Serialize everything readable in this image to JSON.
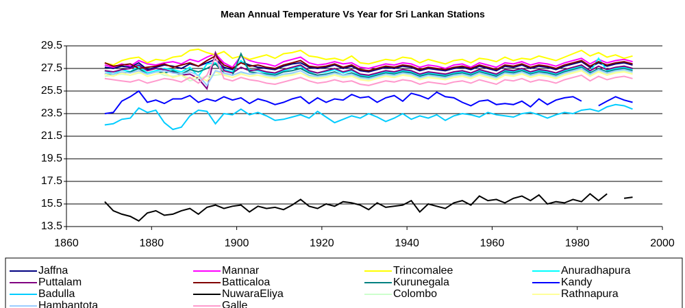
{
  "chart_data": {
    "type": "line",
    "title": "Mean Annual Temperature Vs Year for Sri Lankan Stations",
    "x": [
      1869,
      1871,
      1873,
      1875,
      1877,
      1879,
      1881,
      1883,
      1885,
      1887,
      1889,
      1891,
      1893,
      1895,
      1897,
      1899,
      1901,
      1903,
      1905,
      1907,
      1909,
      1911,
      1913,
      1915,
      1917,
      1919,
      1921,
      1923,
      1925,
      1927,
      1929,
      1931,
      1933,
      1935,
      1937,
      1939,
      1941,
      1943,
      1945,
      1947,
      1949,
      1951,
      1953,
      1955,
      1957,
      1959,
      1961,
      1963,
      1965,
      1967,
      1969,
      1971,
      1973,
      1975,
      1977,
      1979,
      1981,
      1983,
      1985,
      1987,
      1989,
      1991,
      1993
    ],
    "xlim": [
      1860,
      2000
    ],
    "xticks": [
      1860,
      1880,
      1900,
      1920,
      1940,
      1960,
      1980,
      2000
    ],
    "ylim": [
      13.5,
      29.5
    ],
    "yticks": [
      13.5,
      15.5,
      17.5,
      19.5,
      21.5,
      23.5,
      25.5,
      27.5,
      29.5
    ],
    "grid": true,
    "legend": "bottom",
    "series": [
      {
        "name": "Jaffna",
        "color": "#000080",
        "values": [
          27.6,
          27.5,
          27.7,
          27.6,
          28.0,
          27.4,
          27.6,
          27.8,
          27.7,
          27.5,
          27.9,
          27.7,
          28.0,
          28.3,
          27.6,
          27.4,
          28.1,
          27.8,
          27.6,
          27.5,
          27.4,
          27.7,
          27.9,
          28.0,
          27.6,
          27.5,
          27.6,
          27.8,
          27.5,
          27.7,
          27.3,
          27.2,
          27.4,
          27.6,
          27.5,
          27.7,
          27.6,
          27.3,
          27.5,
          27.4,
          27.3,
          27.5,
          27.6,
          27.4,
          27.7,
          27.5,
          27.3,
          27.7,
          27.6,
          27.8,
          27.5,
          27.7,
          27.6,
          27.4,
          27.7,
          27.9,
          28.1,
          27.6,
          28.0,
          27.7,
          27.9,
          28.0,
          27.8
        ]
      },
      {
        "name": "Mannar",
        "color": "#ff00ff",
        "values": [
          27.8,
          27.6,
          27.9,
          27.7,
          28.2,
          27.9,
          27.8,
          28.0,
          28.1,
          27.9,
          28.3,
          28.1,
          28.5,
          28.8,
          28.0,
          27.6,
          28.6,
          28.2,
          28.0,
          27.9,
          27.7,
          28.1,
          28.3,
          28.5,
          28.0,
          27.8,
          27.9,
          28.1,
          27.9,
          28.0,
          27.6,
          27.5,
          27.7,
          27.9,
          27.8,
          28.0,
          27.9,
          27.6,
          27.8,
          27.7,
          27.5,
          27.8,
          27.9,
          27.6,
          28.0,
          27.8,
          27.6,
          28.0,
          27.9,
          28.1,
          27.8,
          28.0,
          27.9,
          27.7,
          28.0,
          28.2,
          28.4,
          27.9,
          28.3,
          28.0,
          28.2,
          28.3,
          28.1
        ]
      },
      {
        "name": "Trincomalee",
        "color": "#ffff00",
        "values": [
          28.0,
          27.8,
          28.2,
          28.4,
          28.5,
          28.0,
          28.3,
          28.2,
          28.5,
          28.6,
          29.1,
          29.2,
          28.9,
          28.7,
          29.0,
          28.4,
          28.6,
          28.3,
          28.5,
          28.7,
          28.4,
          28.8,
          28.9,
          29.1,
          28.6,
          28.5,
          28.3,
          28.4,
          28.2,
          28.6,
          28.0,
          27.9,
          28.1,
          28.3,
          28.2,
          28.5,
          28.4,
          28.0,
          28.3,
          28.1,
          27.9,
          28.2,
          28.3,
          28.0,
          28.4,
          28.3,
          28.1,
          28.5,
          28.2,
          28.4,
          28.3,
          28.6,
          28.4,
          28.2,
          28.5,
          28.8,
          29.1,
          28.6,
          28.9,
          28.5,
          28.7,
          28.4,
          28.6
        ]
      },
      {
        "name": "Anuradhapura",
        "color": "#00ffff",
        "values": [
          27.3,
          27.0,
          27.4,
          27.2,
          27.7,
          27.1,
          27.3,
          27.5,
          27.4,
          27.2,
          27.6,
          26.8,
          27.9,
          28.0,
          27.4,
          27.2,
          28.2,
          27.4,
          27.3,
          27.1,
          27.0,
          27.3,
          27.5,
          27.7,
          27.2,
          27.1,
          27.2,
          27.4,
          27.1,
          27.3,
          26.9,
          26.8,
          27.0,
          27.2,
          27.1,
          27.3,
          27.2,
          26.9,
          27.1,
          27.0,
          26.9,
          27.1,
          27.2,
          27.0,
          27.3,
          27.1,
          26.9,
          27.3,
          27.2,
          27.4,
          27.1,
          27.3,
          27.2,
          27.0,
          27.3,
          27.5,
          27.7,
          27.2,
          28.4,
          27.3,
          27.5,
          27.6,
          27.4
        ]
      },
      {
        "name": "Puttalam",
        "color": "#800080",
        "values": [
          27.3,
          27.2,
          27.4,
          27.5,
          27.8,
          27.3,
          27.5,
          27.4,
          27.2,
          26.9,
          27.0,
          26.6,
          25.7,
          28.9,
          27.3,
          27.1,
          27.6,
          27.3,
          27.4,
          27.2,
          27.1,
          27.4,
          27.6,
          27.8,
          27.3,
          27.1,
          27.3,
          27.5,
          27.2,
          27.4,
          27.0,
          26.9,
          27.1,
          27.3,
          27.2,
          27.4,
          27.3,
          27.0,
          27.2,
          27.1,
          27.0,
          27.2,
          27.3,
          27.1,
          27.4,
          27.2,
          27.0,
          27.4,
          27.3,
          27.5,
          27.2,
          27.4,
          27.3,
          27.1,
          27.4,
          27.6,
          27.8,
          27.3,
          27.7,
          27.4,
          27.6,
          27.7,
          27.5
        ]
      },
      {
        "name": "Batticaloa",
        "color": "#800000",
        "values": [
          28.0,
          27.7,
          27.8,
          27.9,
          27.5,
          27.6,
          27.7,
          27.9,
          27.6,
          27.8,
          28.0,
          27.7,
          28.2,
          28.6,
          27.8,
          27.5,
          28.0,
          27.7,
          27.8,
          27.6,
          27.5,
          27.8,
          28.0,
          28.2,
          27.7,
          27.6,
          27.7,
          27.9,
          27.6,
          27.8,
          27.4,
          27.3,
          27.5,
          27.7,
          27.6,
          27.8,
          27.7,
          27.4,
          27.6,
          27.5,
          27.4,
          27.6,
          27.7,
          27.5,
          27.8,
          27.6,
          27.4,
          27.8,
          27.7,
          27.9,
          27.6,
          27.8,
          27.7,
          27.5,
          27.8,
          28.0,
          28.2,
          27.7,
          28.1,
          27.8,
          28.0,
          28.1,
          27.9
        ]
      },
      {
        "name": "Kurunegala",
        "color": "#008080",
        "values": [
          27.0,
          26.9,
          27.1,
          27.2,
          27.5,
          27.0,
          27.2,
          27.1,
          27.3,
          27.0,
          27.4,
          27.2,
          27.5,
          27.9,
          27.1,
          26.9,
          28.8,
          27.2,
          27.1,
          27.0,
          26.9,
          27.2,
          27.3,
          27.5,
          27.1,
          26.9,
          27.0,
          27.2,
          26.9,
          27.1,
          26.8,
          26.7,
          26.9,
          27.1,
          27.0,
          27.2,
          27.1,
          26.8,
          27.0,
          26.9,
          26.8,
          27.0,
          27.1,
          26.9,
          27.2,
          27.0,
          26.8,
          27.2,
          27.1,
          27.3,
          27.0,
          27.2,
          27.1,
          26.9,
          27.2,
          27.4,
          27.6,
          27.1,
          27.5,
          27.2,
          27.4,
          27.5,
          27.3
        ]
      },
      {
        "name": "Kandy",
        "color": "#0000ff",
        "values": [
          23.5,
          23.6,
          24.6,
          25.0,
          25.5,
          24.5,
          24.7,
          24.4,
          24.8,
          24.8,
          25.1,
          24.5,
          24.8,
          24.6,
          25.0,
          24.7,
          24.9,
          24.4,
          24.8,
          24.6,
          24.3,
          24.5,
          24.8,
          25.0,
          24.4,
          24.9,
          24.5,
          24.8,
          24.7,
          25.2,
          24.9,
          25.0,
          24.5,
          24.9,
          25.1,
          24.6,
          25.3,
          25.1,
          24.8,
          25.4,
          25.0,
          24.9,
          24.5,
          24.2,
          24.6,
          24.7,
          24.3,
          24.4,
          24.3,
          24.6,
          24.1,
          24.8,
          24.3,
          24.7,
          24.9,
          25.0,
          24.6,
          null,
          24.2,
          24.6,
          25.0,
          24.7,
          24.5
        ]
      },
      {
        "name": "Badulla",
        "color": "#00ccff",
        "values": [
          22.5,
          22.6,
          23.0,
          23.1,
          24.0,
          23.6,
          23.8,
          22.7,
          22.1,
          22.3,
          23.3,
          23.8,
          23.7,
          22.6,
          23.5,
          23.4,
          23.9,
          23.4,
          23.6,
          23.3,
          22.9,
          23.0,
          23.2,
          23.4,
          23.1,
          23.7,
          23.2,
          22.7,
          23.0,
          23.3,
          23.1,
          23.5,
          23.2,
          22.8,
          23.1,
          23.5,
          23.0,
          23.3,
          23.1,
          23.4,
          22.9,
          23.3,
          23.5,
          23.4,
          23.2,
          23.6,
          23.4,
          23.3,
          23.2,
          23.5,
          23.6,
          23.4,
          23.1,
          23.4,
          23.6,
          23.5,
          23.8,
          23.9,
          23.7,
          24.1,
          24.3,
          24.2,
          23.9
        ]
      },
      {
        "name": "NuwaraEliya",
        "color": "#000000",
        "values": [
          15.7,
          14.9,
          14.6,
          14.4,
          14.0,
          14.7,
          14.9,
          14.5,
          14.6,
          14.9,
          15.1,
          14.6,
          15.2,
          15.4,
          15.1,
          15.3,
          15.4,
          14.8,
          15.3,
          15.1,
          15.2,
          15.0,
          15.4,
          15.9,
          15.3,
          15.1,
          15.5,
          15.3,
          15.7,
          15.6,
          15.4,
          15.0,
          15.6,
          15.2,
          15.3,
          15.4,
          15.8,
          14.8,
          15.5,
          15.3,
          15.1,
          15.6,
          15.8,
          15.4,
          16.2,
          15.8,
          15.9,
          15.6,
          16.0,
          16.2,
          15.8,
          16.3,
          15.5,
          15.7,
          15.6,
          15.9,
          15.7,
          16.4,
          15.8,
          16.4,
          null,
          16.0,
          16.1
        ]
      },
      {
        "name": "Colombo",
        "color": "#ccffcc",
        "values": [
          26.8,
          26.9,
          27.0,
          26.9,
          27.1,
          27.0,
          27.2,
          26.9,
          26.8,
          26.9,
          26.4,
          26.6,
          26.8,
          26.9,
          27.0,
          26.9,
          27.1,
          27.0,
          26.9,
          26.8,
          26.7,
          26.9,
          27.0,
          27.1,
          26.8,
          26.7,
          26.8,
          27.0,
          26.8,
          26.9,
          26.6,
          26.5,
          26.7,
          26.9,
          26.8,
          27.0,
          26.9,
          26.6,
          26.8,
          26.7,
          26.6,
          26.8,
          26.9,
          26.7,
          27.0,
          26.8,
          26.6,
          27.0,
          26.9,
          27.1,
          26.8,
          27.0,
          26.9,
          26.7,
          27.0,
          27.2,
          27.4,
          26.9,
          27.3,
          27.0,
          27.2,
          27.3,
          27.1
        ]
      },
      {
        "name": "Rathnapura",
        "color": "#ffff99",
        "values": [
          27.0,
          26.8,
          27.1,
          26.9,
          27.2,
          26.8,
          27.0,
          27.1,
          26.7,
          26.9,
          26.6,
          26.8,
          26.4,
          27.2,
          26.9,
          26.7,
          27.0,
          26.8,
          26.9,
          26.7,
          26.6,
          26.8,
          26.9,
          27.1,
          26.7,
          26.6,
          26.7,
          26.9,
          26.7,
          26.8,
          26.5,
          26.4,
          26.6,
          26.8,
          26.7,
          26.9,
          26.8,
          26.5,
          26.7,
          26.6,
          26.5,
          26.7,
          26.8,
          26.6,
          26.9,
          26.7,
          26.5,
          26.9,
          26.8,
          27.0,
          26.7,
          26.9,
          26.8,
          26.6,
          26.9,
          27.1,
          27.3,
          26.8,
          27.2,
          26.9,
          27.1,
          27.2,
          27.0
        ]
      },
      {
        "name": "Hambantota",
        "color": "#99ccff",
        "values": [
          27.1,
          27.0,
          27.2,
          27.1,
          27.3,
          27.0,
          27.2,
          27.3,
          27.1,
          27.0,
          27.2,
          26.9,
          26.0,
          27.3,
          27.1,
          26.9,
          27.2,
          27.0,
          27.1,
          26.9,
          26.8,
          27.0,
          27.1,
          27.3,
          26.9,
          26.8,
          26.9,
          27.1,
          26.9,
          27.0,
          26.7,
          26.6,
          26.8,
          27.0,
          26.9,
          27.1,
          27.0,
          26.7,
          26.9,
          26.8,
          26.7,
          26.9,
          27.0,
          26.8,
          27.1,
          26.9,
          26.7,
          27.1,
          27.0,
          27.2,
          26.9,
          27.1,
          27.0,
          26.8,
          27.1,
          27.3,
          27.5,
          27.0,
          27.4,
          27.1,
          27.3,
          27.4,
          27.2
        ]
      },
      {
        "name": "Galle",
        "color": "#ff99cc",
        "values": [
          26.6,
          26.5,
          26.4,
          26.3,
          26.5,
          26.2,
          26.4,
          26.6,
          26.5,
          26.3,
          26.7,
          26.2,
          26.9,
          28.5,
          26.6,
          26.4,
          26.7,
          26.5,
          26.4,
          26.2,
          26.1,
          26.3,
          26.5,
          26.7,
          26.4,
          26.2,
          26.3,
          26.5,
          26.3,
          26.4,
          26.1,
          26.0,
          26.2,
          26.4,
          26.3,
          26.5,
          26.4,
          26.1,
          26.3,
          26.2,
          26.1,
          26.3,
          26.4,
          26.2,
          26.5,
          26.3,
          26.1,
          26.5,
          26.4,
          26.6,
          26.3,
          26.5,
          26.4,
          26.2,
          26.5,
          26.7,
          26.9,
          26.4,
          26.8,
          26.5,
          26.7,
          26.8,
          26.6
        ]
      }
    ]
  }
}
